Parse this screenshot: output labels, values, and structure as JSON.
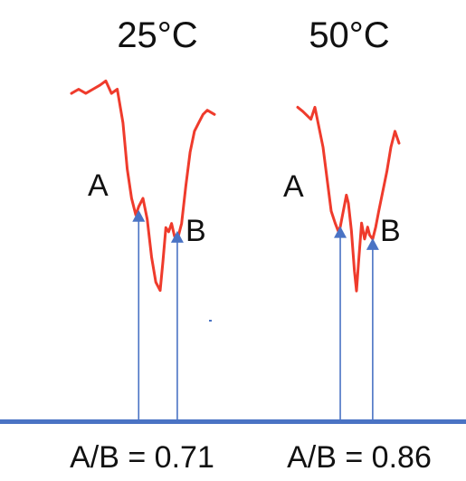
{
  "chart_data": {
    "type": "line",
    "panels": [
      {
        "title": "25°C",
        "ratio_text": "A/B = 0.71",
        "markers": [
          {
            "label": "A",
            "x": 0.47,
            "y": 0.09
          },
          {
            "label": "B",
            "x": 0.74,
            "y": 0.04
          }
        ],
        "x": [
          0.0,
          0.05,
          0.1,
          0.15,
          0.2,
          0.24,
          0.28,
          0.32,
          0.36,
          0.39,
          0.42,
          0.45,
          0.47,
          0.5,
          0.53,
          0.56,
          0.59,
          0.62,
          0.64,
          0.66,
          0.68,
          0.7,
          0.72,
          0.74,
          0.77,
          0.8,
          0.83,
          0.86,
          0.89,
          0.92,
          0.95,
          1.0
        ],
        "y": [
          0.37,
          0.38,
          0.37,
          0.38,
          0.39,
          0.4,
          0.37,
          0.38,
          0.3,
          0.19,
          0.12,
          0.08,
          0.1,
          0.12,
          0.07,
          -0.02,
          -0.08,
          -0.1,
          -0.03,
          0.05,
          0.04,
          0.06,
          0.03,
          0.02,
          0.06,
          0.15,
          0.23,
          0.28,
          0.3,
          0.32,
          0.33,
          0.32
        ]
      },
      {
        "title": "50°C",
        "ratio_text": "A/B = 0.86",
        "markers": [
          {
            "label": "A",
            "x": 0.42,
            "y": 0.06
          },
          {
            "label": "B",
            "x": 0.74,
            "y": 0.03
          }
        ],
        "x": [
          0.0,
          0.05,
          0.09,
          0.13,
          0.17,
          0.21,
          0.25,
          0.29,
          0.33,
          0.37,
          0.4,
          0.42,
          0.45,
          0.48,
          0.5,
          0.53,
          0.56,
          0.58,
          0.6,
          0.63,
          0.66,
          0.69,
          0.71,
          0.74,
          0.77,
          0.8,
          0.84,
          0.88,
          0.92,
          0.96,
          1.0
        ],
        "y": [
          0.36,
          0.35,
          0.34,
          0.33,
          0.36,
          0.31,
          0.26,
          0.18,
          0.1,
          0.07,
          0.05,
          0.06,
          0.1,
          0.14,
          0.12,
          0.05,
          -0.05,
          -0.1,
          -0.03,
          0.07,
          0.03,
          0.06,
          0.04,
          0.03,
          0.06,
          0.1,
          0.15,
          0.2,
          0.26,
          0.3,
          0.27
        ]
      }
    ],
    "grid": false,
    "colors": {
      "trace": "#ef3b2c",
      "arrow": "#4a73c4",
      "baseline": "#4a73c4"
    }
  }
}
